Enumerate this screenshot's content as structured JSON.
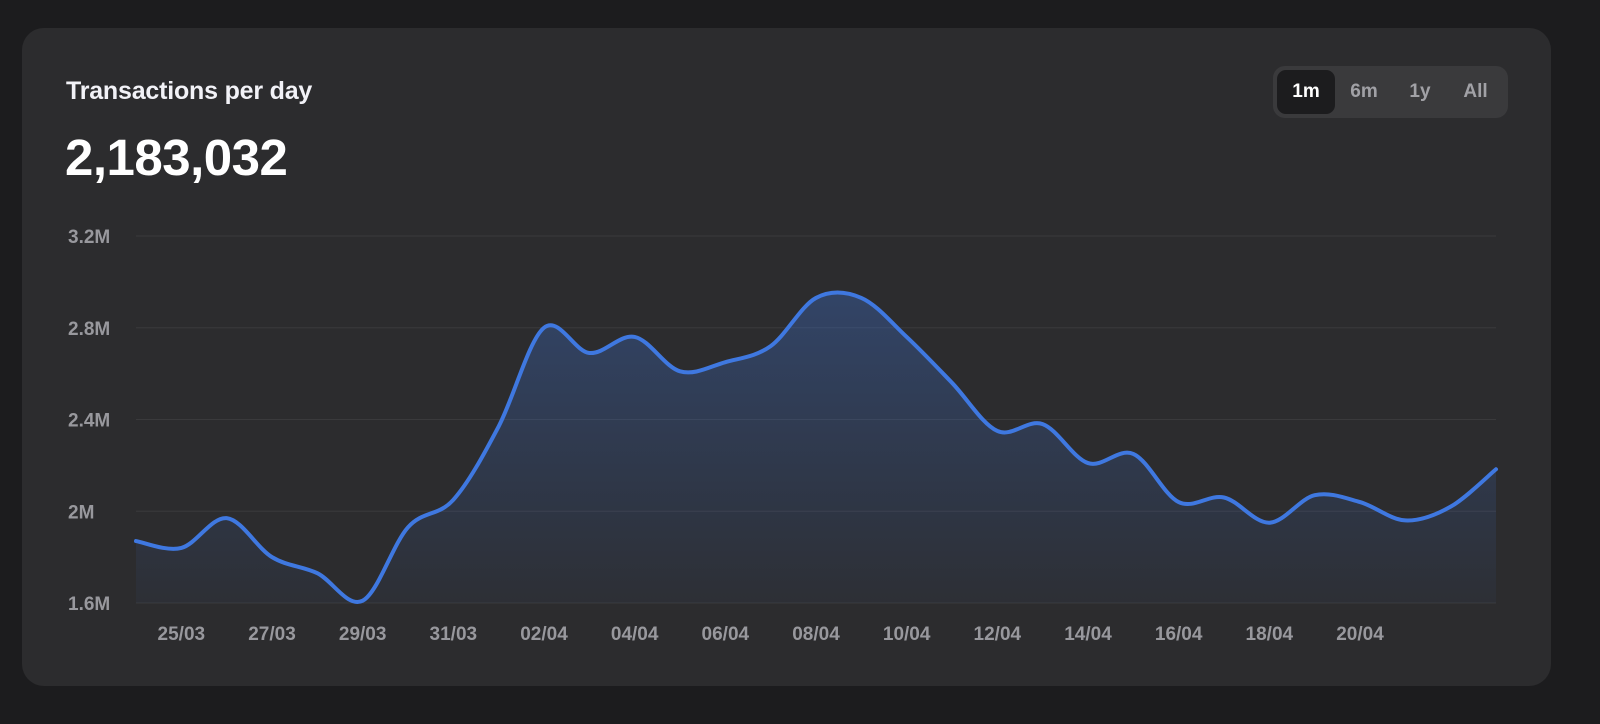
{
  "header": {
    "title": "Transactions per day",
    "value": "2,183,032"
  },
  "range_selector": {
    "options": [
      "1m",
      "6m",
      "1y",
      "All"
    ],
    "selected": "1m"
  },
  "colors": {
    "background": "#1c1c1e",
    "card": "#2c2c2e",
    "line": "#3f78e0",
    "grid": "#3a3a3c",
    "tick_text": "#98989d"
  },
  "chart_data": {
    "type": "area",
    "title": "Transactions per day",
    "xlabel": "",
    "ylabel": "",
    "ylim": [
      1600000,
      3200000
    ],
    "y_ticks": [
      1600000,
      2000000,
      2400000,
      2800000,
      3200000
    ],
    "y_tick_labels": [
      "1.6M",
      "2M",
      "2.4M",
      "2.8M",
      "3.2M"
    ],
    "x_tick_labels": [
      "25/03",
      "27/03",
      "29/03",
      "31/03",
      "02/04",
      "04/04",
      "06/04",
      "08/04",
      "10/04",
      "12/04",
      "14/04",
      "16/04",
      "18/04",
      "20/04"
    ],
    "grid": true,
    "legend": "none",
    "series": [
      {
        "x": [
          "24/03",
          "25/03",
          "26/03",
          "27/03",
          "28/03",
          "29/03",
          "30/03",
          "31/03",
          "01/04",
          "02/04",
          "03/04",
          "04/04",
          "05/04",
          "06/04",
          "07/04",
          "08/04",
          "09/04",
          "10/04",
          "11/04",
          "12/04",
          "13/04",
          "14/04",
          "15/04",
          "16/04",
          "17/04",
          "18/04",
          "19/04",
          "20/04",
          "21/04",
          "22/04",
          "23/04"
        ],
        "values": [
          1870000,
          1840000,
          1970000,
          1800000,
          1730000,
          1610000,
          1930000,
          2050000,
          2370000,
          2800000,
          2690000,
          2760000,
          2610000,
          2650000,
          2720000,
          2930000,
          2930000,
          2760000,
          2560000,
          2350000,
          2380000,
          2210000,
          2250000,
          2040000,
          2060000,
          1950000,
          2070000,
          2040000,
          1960000,
          2020000,
          2183032
        ]
      }
    ]
  }
}
